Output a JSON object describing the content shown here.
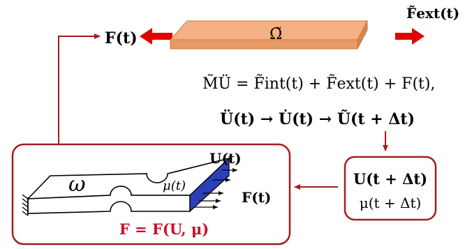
{
  "top": {
    "force_label": "F(t)",
    "domain_label": "Ω̃",
    "ext_force_label": "F̃ext(t)"
  },
  "equations": {
    "eq1": "M̃Ü = F̃int(t) + F̃ext(t) + F(t),",
    "eq2": "Ü(t) → U̇(t) → Ũ(t + Δt)"
  },
  "update_box": {
    "line1": "U(t + Δt)",
    "line2": "μ(t + Δt)"
  },
  "micro_box": {
    "omega_label": "ω",
    "mu_label": "μ(t)",
    "disp_label": "U(t)",
    "force_label": "F(t)",
    "relation": "F = F(U, μ)"
  },
  "colors": {
    "accent_red": "#e00000",
    "border_red": "#a51c1c",
    "plate_fill": "#f4b183",
    "plate_stroke": "#c77b47",
    "face_blue": "#2b3fb8"
  }
}
